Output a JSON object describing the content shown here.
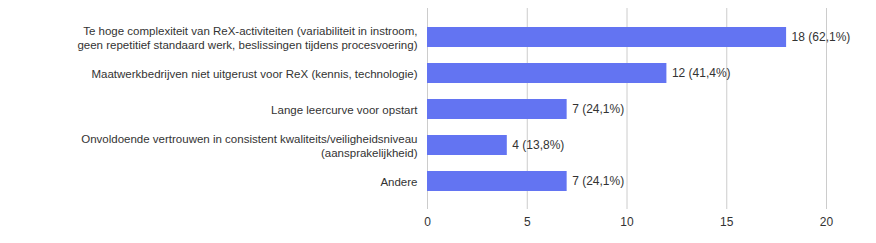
{
  "chart_data": {
    "type": "bar",
    "orientation": "horizontal",
    "categories": [
      "Te hoge complexiteit van ReX-activiteiten (variabiliteit in instroom,\ngeen repetitief standaard werk, beslissingen tijdens procesvoering)",
      "Maatwerkbedrijven niet uitgerust voor ReX (kennis, technologie)",
      "Lange leercurve voor opstart",
      "Onvoldoende vertrouwen in consistent kwaliteits/veiligheidsniveau\n(aansprakelijkheid)",
      "Andere"
    ],
    "values": [
      18,
      12,
      7,
      4,
      7
    ],
    "value_labels": [
      "18 (62,1%)",
      "12 (41,4%)",
      "7 (24,1%)",
      "4 (13,8%)",
      "7 (24,1%)"
    ],
    "data_labels": true,
    "color": "#6374f2",
    "xlim": [
      0,
      20
    ],
    "xticks": [
      0,
      5,
      10,
      15,
      20
    ],
    "grid": true
  }
}
